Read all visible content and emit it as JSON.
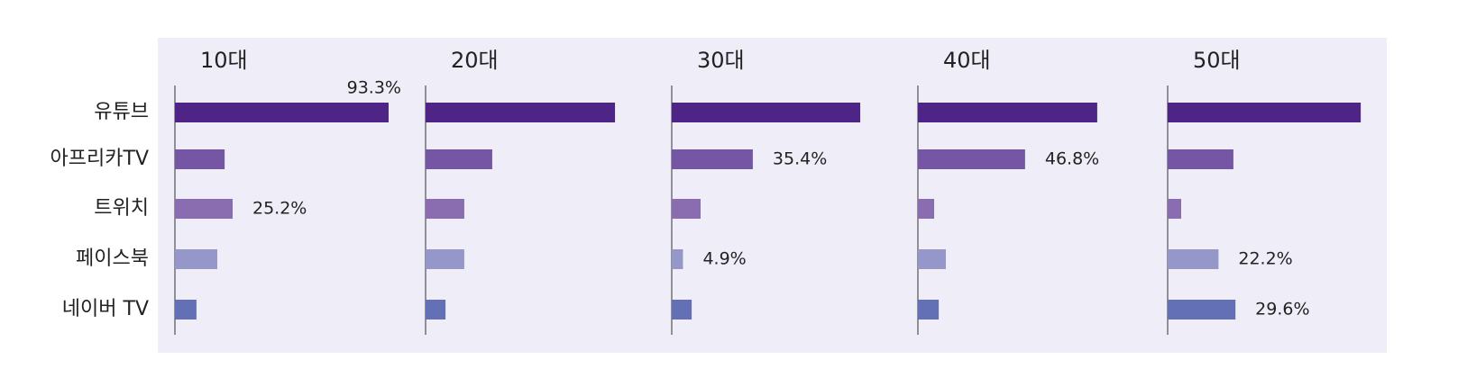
{
  "chart_data": {
    "type": "bar",
    "categories": [
      "유튜브",
      "아프리카TV",
      "트위치",
      "페이스북",
      "네이버 TV"
    ],
    "colors": [
      "#4e2587",
      "#7456a4",
      "#8a6db0",
      "#9697c9",
      "#6370b5"
    ],
    "panels": [
      {
        "title": "10대",
        "values": [
          93.3,
          21.7,
          25.2,
          18.5,
          9.4
        ],
        "value_labels": [
          "93.3%",
          null,
          "25.2%",
          null,
          null
        ]
      },
      {
        "title": "20대",
        "values": [
          82.7,
          29.1,
          16.9,
          16.9,
          8.7
        ],
        "value_labels": [
          null,
          null,
          null,
          null,
          null
        ]
      },
      {
        "title": "30대",
        "values": [
          82.3,
          35.4,
          12.6,
          4.9,
          8.7
        ],
        "value_labels": [
          null,
          "35.4%",
          null,
          "4.9%",
          null
        ]
      },
      {
        "title": "40대",
        "values": [
          78.3,
          46.8,
          7.1,
          12.2,
          9.1
        ],
        "value_labels": [
          null,
          "46.8%",
          null,
          null,
          null
        ]
      },
      {
        "title": "50대",
        "values": [
          84.3,
          28.7,
          5.9,
          22.2,
          29.6
        ],
        "value_labels": [
          null,
          null,
          null,
          "22.2%",
          "29.6%"
        ]
      }
    ]
  }
}
